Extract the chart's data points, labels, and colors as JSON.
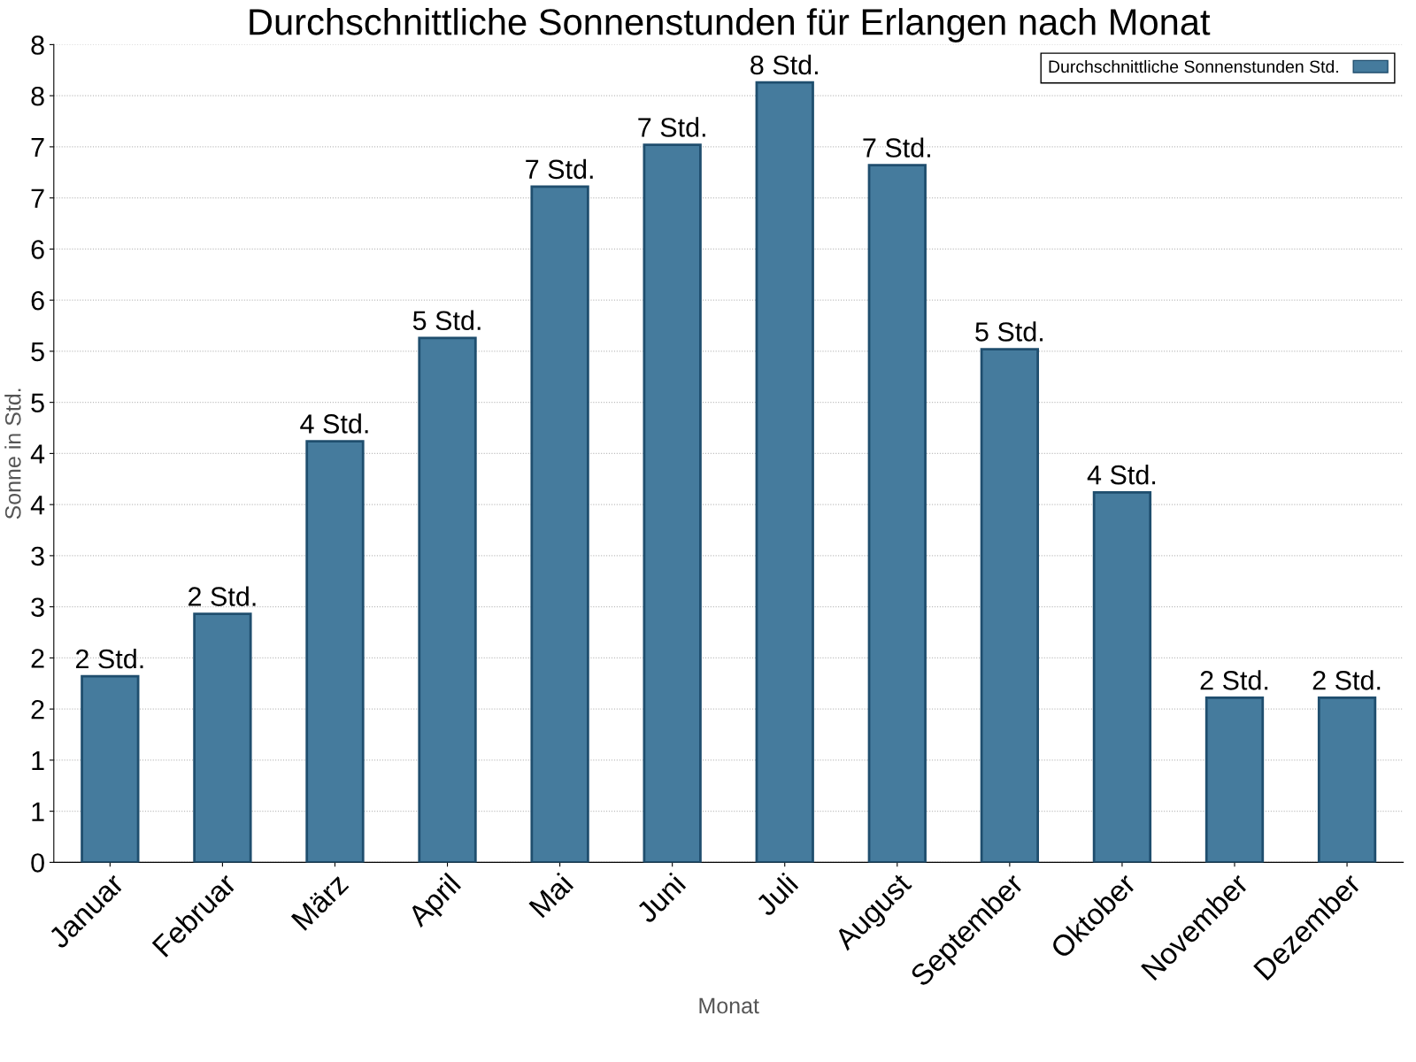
{
  "chart_data": {
    "type": "bar",
    "title": "Durchschnittliche Sonnenstunden für Erlangen nach Monat",
    "xlabel": "Monat",
    "ylabel": "Sonne in Std.",
    "categories": [
      "Januar",
      "Februar",
      "März",
      "April",
      "Mai",
      "Juni",
      "Juli",
      "August",
      "September",
      "Oktober",
      "November",
      "Dezember"
    ],
    "series": [
      {
        "name": "Durchschnittliche Sonnenstunden Std.",
        "color": "#457b9d",
        "values": [
          1.82,
          2.43,
          4.12,
          5.13,
          6.61,
          7.02,
          7.63,
          6.82,
          5.02,
          3.62,
          1.61,
          1.61
        ],
        "value_labels": [
          "2 Std.",
          "2 Std.",
          "4 Std.",
          "5 Std.",
          "7 Std.",
          "7 Std.",
          "8 Std.",
          "7 Std.",
          "5 Std.",
          "4 Std.",
          "2 Std.",
          "2 Std."
        ]
      }
    ],
    "ylim": [
      0,
      8
    ],
    "yticks": [
      0,
      {
        "value": 0.5,
        "label": "1"
      },
      1,
      {
        "value": 1.5,
        "label": "2"
      },
      2,
      {
        "value": 2.5,
        "label": "3"
      },
      3,
      {
        "value": 3.5,
        "label": "4"
      },
      4,
      {
        "value": 4.5,
        "label": "5"
      },
      5,
      {
        "value": 5.5,
        "label": "6"
      },
      6,
      {
        "value": 6.5,
        "label": "7"
      },
      7,
      {
        "value": 7.5,
        "label": "8"
      },
      8
    ],
    "grid": "y",
    "legend": "top right"
  }
}
